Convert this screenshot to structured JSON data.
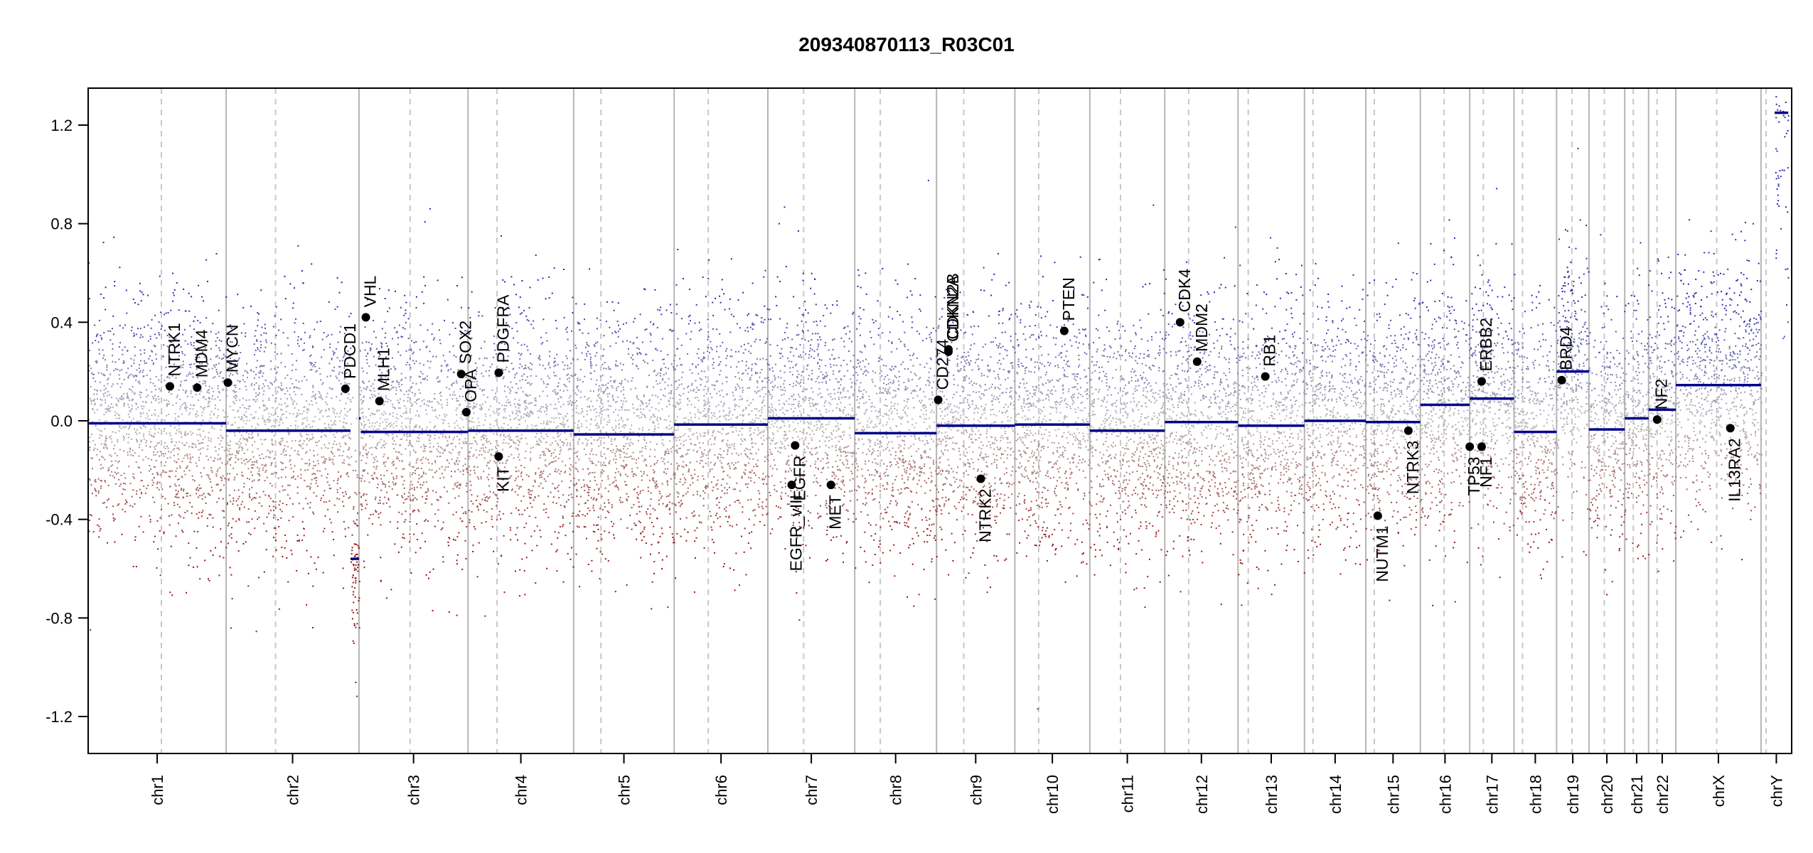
{
  "chart_data": {
    "type": "scatter",
    "title": "209340870113_R03C01",
    "xlabel": "",
    "ylabel": "",
    "ylim": [
      -1.35,
      1.35
    ],
    "grid": "chromosome separators (solid) and centromere markers (dashed)",
    "y_ticks": [
      {
        "value": 1.2,
        "label": "1.2"
      },
      {
        "value": 0.8,
        "label": "0.8"
      },
      {
        "value": 0.4,
        "label": "0.4"
      },
      {
        "value": 0.0,
        "label": "0.0"
      },
      {
        "value": -0.4,
        "label": "-0.4"
      },
      {
        "value": -0.8,
        "label": "-0.8"
      },
      {
        "value": -1.2,
        "label": "-1.2"
      }
    ],
    "colors": {
      "gain": "#3a3ab0",
      "loss": "#9e1a1a",
      "neutral": "#b0b0b0",
      "segment": "#00008b"
    },
    "chromosomes": [
      {
        "name": "chr1",
        "start": 0.0,
        "end": 0.081,
        "centromere": 0.043,
        "segments": [
          {
            "x0": 0.0,
            "x1": 0.081,
            "y": -0.01
          }
        ]
      },
      {
        "name": "chr2",
        "start": 0.081,
        "end": 0.159,
        "centromere": 0.11,
        "segments": [
          {
            "x0": 0.081,
            "x1": 0.154,
            "y": -0.04
          },
          {
            "x0": 0.154,
            "x1": 0.159,
            "y": -0.56
          }
        ]
      },
      {
        "name": "chr3",
        "start": 0.159,
        "end": 0.223,
        "centromere": 0.189,
        "segments": [
          {
            "x0": 0.159,
            "x1": 0.16,
            "y": 0.01
          },
          {
            "x0": 0.16,
            "x1": 0.223,
            "y": -0.045
          }
        ]
      },
      {
        "name": "chr4",
        "start": 0.223,
        "end": 0.285,
        "centromere": 0.24,
        "segments": [
          {
            "x0": 0.223,
            "x1": 0.285,
            "y": -0.04
          }
        ]
      },
      {
        "name": "chr5",
        "start": 0.285,
        "end": 0.344,
        "centromere": 0.301,
        "segments": [
          {
            "x0": 0.285,
            "x1": 0.344,
            "y": -0.055
          }
        ]
      },
      {
        "name": "chr6",
        "start": 0.344,
        "end": 0.399,
        "centromere": 0.364,
        "segments": [
          {
            "x0": 0.344,
            "x1": 0.399,
            "y": -0.015
          }
        ]
      },
      {
        "name": "chr7",
        "start": 0.399,
        "end": 0.45,
        "centromere": 0.42,
        "segments": [
          {
            "x0": 0.399,
            "x1": 0.45,
            "y": 0.01
          }
        ]
      },
      {
        "name": "chr8",
        "start": 0.45,
        "end": 0.498,
        "centromere": 0.465,
        "segments": [
          {
            "x0": 0.45,
            "x1": 0.498,
            "y": -0.05
          }
        ]
      },
      {
        "name": "chr9",
        "start": 0.498,
        "end": 0.544,
        "centromere": 0.514,
        "segments": [
          {
            "x0": 0.498,
            "x1": 0.544,
            "y": -0.02
          }
        ]
      },
      {
        "name": "chr10",
        "start": 0.544,
        "end": 0.588,
        "centromere": 0.558,
        "segments": [
          {
            "x0": 0.544,
            "x1": 0.588,
            "y": -0.015
          }
        ]
      },
      {
        "name": "chr11",
        "start": 0.588,
        "end": 0.632,
        "centromere": 0.606,
        "segments": [
          {
            "x0": 0.588,
            "x1": 0.632,
            "y": -0.04
          }
        ]
      },
      {
        "name": "chr12",
        "start": 0.632,
        "end": 0.675,
        "centromere": 0.646,
        "segments": [
          {
            "x0": 0.632,
            "x1": 0.675,
            "y": -0.005
          }
        ]
      },
      {
        "name": "chr13",
        "start": 0.675,
        "end": 0.714,
        "centromere": 0.681,
        "segments": [
          {
            "x0": 0.675,
            "x1": 0.714,
            "y": -0.02
          }
        ]
      },
      {
        "name": "chr14",
        "start": 0.714,
        "end": 0.75,
        "centromere": 0.719,
        "segments": [
          {
            "x0": 0.714,
            "x1": 0.75,
            "y": 0.0
          }
        ]
      },
      {
        "name": "chr15",
        "start": 0.75,
        "end": 0.782,
        "centromere": 0.755,
        "segments": [
          {
            "x0": 0.75,
            "x1": 0.782,
            "y": -0.005
          }
        ]
      },
      {
        "name": "chr16",
        "start": 0.782,
        "end": 0.811,
        "centromere": 0.796,
        "segments": [
          {
            "x0": 0.782,
            "x1": 0.811,
            "y": 0.065
          }
        ]
      },
      {
        "name": "chr17",
        "start": 0.811,
        "end": 0.837,
        "centromere": 0.819,
        "segments": [
          {
            "x0": 0.811,
            "x1": 0.837,
            "y": 0.09
          }
        ]
      },
      {
        "name": "chr18",
        "start": 0.837,
        "end": 0.862,
        "centromere": 0.842,
        "segments": [
          {
            "x0": 0.837,
            "x1": 0.862,
            "y": -0.045
          }
        ]
      },
      {
        "name": "chr19",
        "start": 0.862,
        "end": 0.881,
        "centromere": 0.871,
        "segments": [
          {
            "x0": 0.862,
            "x1": 0.881,
            "y": 0.2
          }
        ]
      },
      {
        "name": "chr20",
        "start": 0.881,
        "end": 0.902,
        "centromere": 0.89,
        "segments": [
          {
            "x0": 0.881,
            "x1": 0.902,
            "y": -0.035
          }
        ]
      },
      {
        "name": "chr21",
        "start": 0.902,
        "end": 0.916,
        "centromere": 0.907,
        "segments": [
          {
            "x0": 0.902,
            "x1": 0.916,
            "y": 0.01
          }
        ]
      },
      {
        "name": "chr22",
        "start": 0.916,
        "end": 0.932,
        "centromere": 0.921,
        "segments": [
          {
            "x0": 0.916,
            "x1": 0.932,
            "y": 0.045
          }
        ]
      },
      {
        "name": "chrX",
        "start": 0.932,
        "end": 0.982,
        "centromere": 0.956,
        "segments": [
          {
            "x0": 0.932,
            "x1": 0.982,
            "y": 0.145
          }
        ]
      },
      {
        "name": "chrY",
        "start": 0.982,
        "end": 1.0,
        "centromere": 0.985,
        "segments": [
          {
            "x0": 0.99,
            "x1": 0.998,
            "y": 1.25
          }
        ]
      }
    ],
    "genes": [
      {
        "name": "NTRK1",
        "x": 0.048,
        "y": 0.14
      },
      {
        "name": "MDM4",
        "x": 0.064,
        "y": 0.135
      },
      {
        "name": "MYCN",
        "x": 0.082,
        "y": 0.155
      },
      {
        "name": "PDCD1",
        "x": 0.151,
        "y": 0.13
      },
      {
        "name": "VHL",
        "x": 0.163,
        "y": 0.42
      },
      {
        "name": "MLH1",
        "x": 0.171,
        "y": 0.08
      },
      {
        "name": "SOX2",
        "x": 0.219,
        "y": 0.19
      },
      {
        "name": "OPA",
        "x": 0.222,
        "y": 0.035
      },
      {
        "name": "PDGFRA",
        "x": 0.241,
        "y": 0.195
      },
      {
        "name": "KIT",
        "x": 0.241,
        "y": -0.145
      },
      {
        "name": "EGFR",
        "x": 0.415,
        "y": -0.1
      },
      {
        "name": "EGFR_vIII",
        "x": 0.413,
        "y": -0.26
      },
      {
        "name": "MET",
        "x": 0.436,
        "y": -0.26
      },
      {
        "name": "CD274",
        "x": 0.499,
        "y": 0.085
      },
      {
        "name": "CDKN2A",
        "x": 0.505,
        "y": 0.28
      },
      {
        "name": "CDKN2B",
        "x": 0.505,
        "y": 0.29
      },
      {
        "name": "NTRK2",
        "x": 0.524,
        "y": -0.235
      },
      {
        "name": "PTEN",
        "x": 0.573,
        "y": 0.365
      },
      {
        "name": "CDK4",
        "x": 0.641,
        "y": 0.4
      },
      {
        "name": "MDM2",
        "x": 0.651,
        "y": 0.24
      },
      {
        "name": "RB1",
        "x": 0.691,
        "y": 0.18
      },
      {
        "name": "NUTM1",
        "x": 0.757,
        "y": -0.385
      },
      {
        "name": "NTRK3",
        "x": 0.775,
        "y": -0.04
      },
      {
        "name": "TP53",
        "x": 0.811,
        "y": -0.105
      },
      {
        "name": "NF1",
        "x": 0.818,
        "y": -0.105
      },
      {
        "name": "ERBB2",
        "x": 0.818,
        "y": 0.16
      },
      {
        "name": "BRD4",
        "x": 0.865,
        "y": 0.165
      },
      {
        "name": "NF2",
        "x": 0.921,
        "y": 0.005
      },
      {
        "name": "IL13RA2",
        "x": 0.964,
        "y": -0.03
      }
    ]
  }
}
